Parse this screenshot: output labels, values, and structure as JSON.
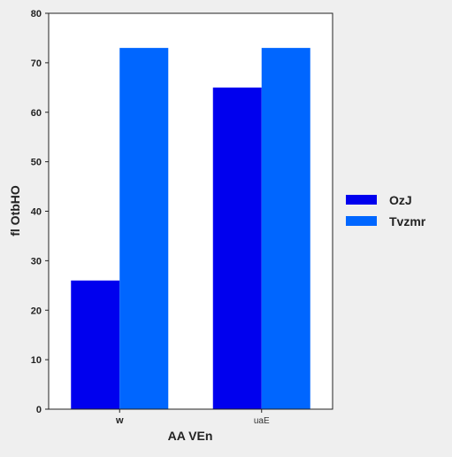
{
  "chart_data": {
    "type": "bar",
    "categories": [
      "w",
      "uaE"
    ],
    "series": [
      {
        "name": "OzJ",
        "values": [
          26,
          65
        ],
        "color": "#0000ee"
      },
      {
        "name": "Tvzmr",
        "values": [
          73,
          73
        ],
        "color": "#0066ff"
      }
    ],
    "xlabel": "AA VEn",
    "ylabel": "fl OtbHO",
    "ylim": [
      0,
      80
    ],
    "yticks": [
      0,
      10,
      20,
      30,
      40,
      50,
      60,
      70,
      80
    ],
    "grid": false,
    "legend_position": "right"
  }
}
